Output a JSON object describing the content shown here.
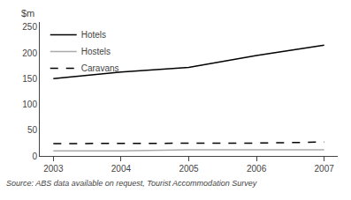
{
  "chart_data": {
    "type": "line",
    "x": [
      2003,
      2004,
      2005,
      2006,
      2007
    ],
    "series": [
      {
        "name": "Hotels",
        "color": "#000000",
        "line_style": "solid",
        "values": [
          150,
          163,
          172,
          195,
          215
        ]
      },
      {
        "name": "Hostels",
        "color": "#aaaaaa",
        "line_style": "solid",
        "values": [
          10,
          10,
          12,
          12,
          12
        ]
      },
      {
        "name": "Caravans",
        "color": "#000000",
        "line_style": "dashed",
        "values": [
          24,
          24,
          25,
          25,
          27
        ]
      }
    ],
    "ylabel": "$m",
    "xlim": [
      2002.8,
      2007.2
    ],
    "xticks": [
      2003,
      2004,
      2005,
      2006,
      2007
    ],
    "ylim": [
      0,
      260
    ],
    "yticks": [
      0,
      50,
      100,
      150,
      200,
      250
    ],
    "grid": false,
    "legend": "upper left",
    "annotations": [
      "Source: ABS data available on request, Tourist Accommodation Survey"
    ]
  }
}
